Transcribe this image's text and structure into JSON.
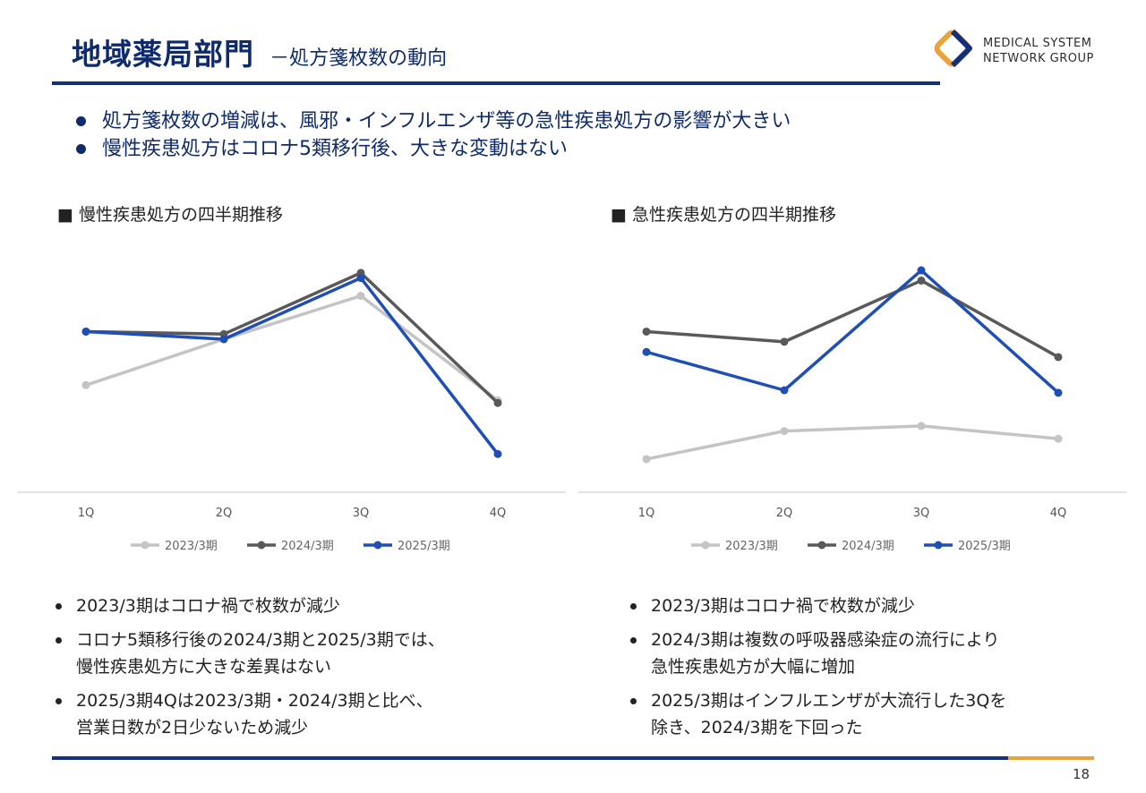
{
  "header": {
    "title": "地域薬局部門",
    "subtitle": "－処方箋枚数の動向",
    "logo_line1": "MEDICAL SYSTEM",
    "logo_line2": "NETWORK GROUP"
  },
  "summary": [
    "処方箋枚数の増減は、風邪・インフルエンザ等の急性疾患処方の影響が大きい",
    "慢性疾患処方はコロナ5類移行後、大きな変動はない"
  ],
  "colors": {
    "navy": "#14307a",
    "accent_gold": "#e8a33a",
    "series_2023": "#c4c4c4",
    "series_2024": "#595959",
    "series_2025": "#1f4fb5"
  },
  "chart_data": [
    {
      "type": "line",
      "title": "■ 慢性疾患処方の四半期推移",
      "categories": [
        "1Q",
        "2Q",
        "3Q",
        "4Q"
      ],
      "ylim": [
        0,
        100
      ],
      "grid": false,
      "legend": "bottom",
      "series": [
        {
          "name": "2023/3期",
          "values": [
            42,
            60,
            77,
            36
          ]
        },
        {
          "name": "2024/3期",
          "values": [
            63,
            62,
            86,
            35
          ]
        },
        {
          "name": "2025/3期",
          "values": [
            63,
            60,
            84,
            15
          ]
        }
      ]
    },
    {
      "type": "line",
      "title": "■ 急性疾患処方の四半期推移",
      "categories": [
        "1Q",
        "2Q",
        "3Q",
        "4Q"
      ],
      "ylim": [
        0,
        100
      ],
      "grid": false,
      "legend": "bottom",
      "series": [
        {
          "name": "2023/3期",
          "values": [
            13,
            24,
            26,
            21
          ]
        },
        {
          "name": "2024/3期",
          "values": [
            63,
            59,
            83,
            53
          ]
        },
        {
          "name": "2025/3期",
          "values": [
            55,
            40,
            87,
            39
          ]
        }
      ]
    }
  ],
  "notes_left": [
    [
      "2023/3期はコロナ禍で枚数が減少"
    ],
    [
      "コロナ5類移行後の2024/3期と2025/3期では、",
      "慢性疾患処方に大きな差異はない"
    ],
    [
      "2025/3期4Qは2023/3期・2024/3期と比べ、",
      "営業日数が2日少ないため減少"
    ]
  ],
  "notes_right": [
    [
      "2023/3期はコロナ禍で枚数が減少"
    ],
    [
      "2024/3期は複数の呼吸器感染症の流行により",
      "急性疾患処方が大幅に増加"
    ],
    [
      "2025/3期はインフルエンザが大流行した3Qを",
      "除き、2024/3期を下回った"
    ]
  ],
  "page_number": "18"
}
